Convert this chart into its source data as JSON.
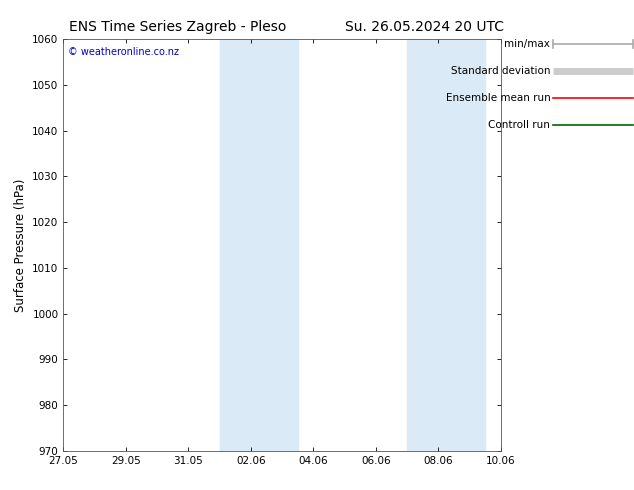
{
  "title_left": "ENS Time Series Zagreb - Pleso",
  "title_right": "Su. 26.05.2024 20 UTC",
  "ylabel": "Surface Pressure (hPa)",
  "ylim": [
    970,
    1060
  ],
  "yticks": [
    970,
    980,
    990,
    1000,
    1010,
    1020,
    1030,
    1040,
    1050,
    1060
  ],
  "xtick_labels": [
    "27.05",
    "29.05",
    "31.05",
    "02.06",
    "04.06",
    "06.06",
    "08.06",
    "10.06"
  ],
  "xtick_positions": [
    0,
    2,
    4,
    6,
    8,
    10,
    12,
    14
  ],
  "total_days": 14,
  "shade_bands": [
    {
      "x_start": 5.0,
      "x_end": 7.5
    },
    {
      "x_start": 11.0,
      "x_end": 13.5
    }
  ],
  "shade_color": "#daeaf7",
  "bg_color": "#ffffff",
  "border_color": "#555555",
  "watermark": "© weatheronline.co.nz",
  "watermark_color": "#0000cc",
  "legend_items": [
    {
      "label": "min/max",
      "color": "#aaaaaa",
      "lw": 1.2,
      "style": "line_with_cap"
    },
    {
      "label": "Standard deviation",
      "color": "#cccccc",
      "lw": 5,
      "style": "thick"
    },
    {
      "label": "Ensemble mean run",
      "color": "#ff0000",
      "lw": 1.2,
      "style": "line"
    },
    {
      "label": "Controll run",
      "color": "#006600",
      "lw": 1.2,
      "style": "line"
    }
  ],
  "title_fontsize": 10,
  "tick_fontsize": 7.5,
  "ylabel_fontsize": 8.5,
  "legend_fontsize": 7.5
}
